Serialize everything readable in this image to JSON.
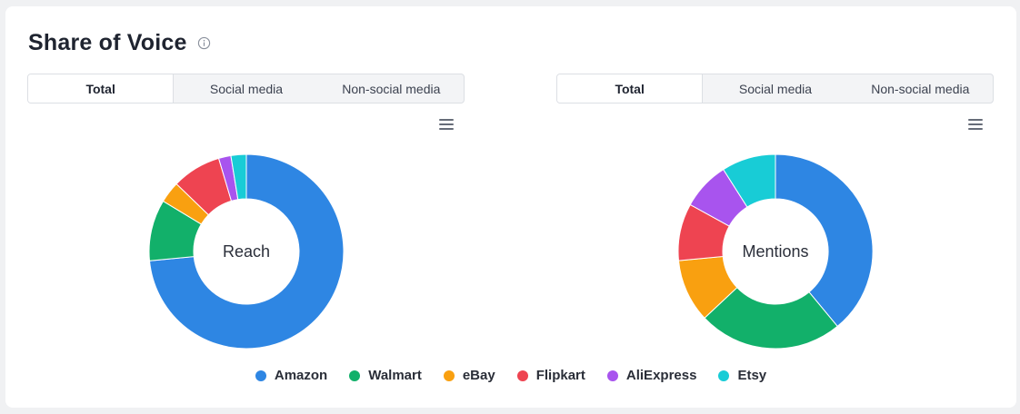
{
  "header": {
    "title": "Share of Voice",
    "info_icon": "info-circle-icon"
  },
  "panels": [
    {
      "tabs": [
        {
          "label": "Total",
          "active": true
        },
        {
          "label": "Social media",
          "active": false
        },
        {
          "label": "Non-social media",
          "active": false
        }
      ],
      "menu_icon": "hamburger-menu-icon"
    },
    {
      "tabs": [
        {
          "label": "Total",
          "active": true
        },
        {
          "label": "Social media",
          "active": false
        },
        {
          "label": "Non-social media",
          "active": false
        }
      ],
      "menu_icon": "hamburger-menu-icon"
    }
  ],
  "chart_data": [
    {
      "type": "pie",
      "center_label": "Reach",
      "categories": [
        "Amazon",
        "Walmart",
        "eBay",
        "Flipkart",
        "AliExpress",
        "Etsy"
      ],
      "values": [
        72.0,
        10.0,
        3.5,
        8.0,
        2.0,
        2.5
      ],
      "colors": [
        "#2e86e3",
        "#12b06a",
        "#f9a010",
        "#ee4451",
        "#a854ee",
        "#18ccd6"
      ]
    },
    {
      "type": "pie",
      "center_label": "Mentions",
      "categories": [
        "Amazon",
        "Walmart",
        "eBay",
        "Flipkart",
        "AliExpress",
        "Etsy"
      ],
      "values": [
        39.0,
        24.0,
        10.5,
        9.5,
        8.0,
        9.0
      ],
      "colors": [
        "#2e86e3",
        "#12b06a",
        "#f9a010",
        "#ee4451",
        "#a854ee",
        "#18ccd6"
      ]
    }
  ],
  "legend": [
    {
      "label": "Amazon",
      "color": "#2e86e3"
    },
    {
      "label": "Walmart",
      "color": "#12b06a"
    },
    {
      "label": "eBay",
      "color": "#f9a010"
    },
    {
      "label": "Flipkart",
      "color": "#ee4451"
    },
    {
      "label": "AliExpress",
      "color": "#a854ee"
    },
    {
      "label": "Etsy",
      "color": "#18ccd6"
    }
  ]
}
